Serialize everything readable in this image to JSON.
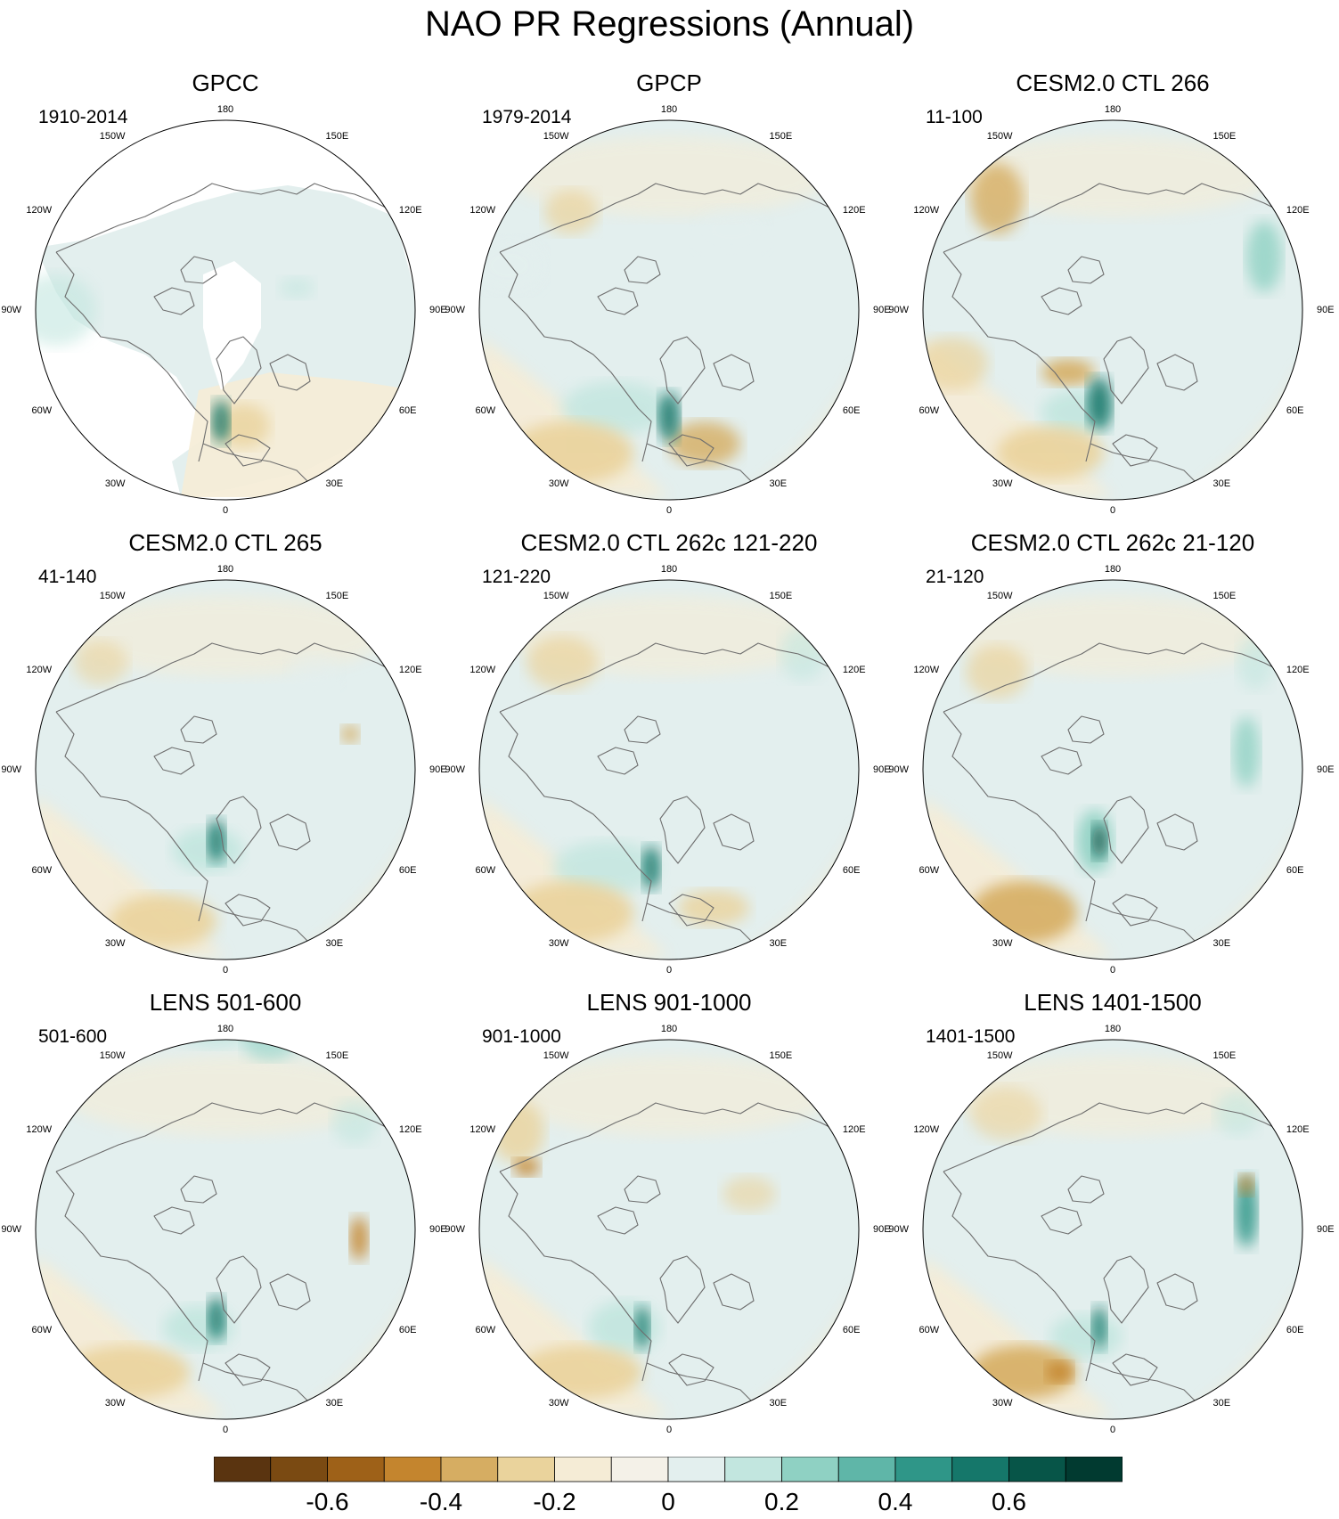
{
  "title": "NAO PR Regressions (Annual)",
  "panels": [
    {
      "title": "GPCC",
      "period": "1910-2014",
      "missing_ocean": true
    },
    {
      "title": "GPCP",
      "period": "1979-2014",
      "missing_ocean": false
    },
    {
      "title": "CESM2.0 CTL 266",
      "period": "11-100",
      "missing_ocean": false
    },
    {
      "title": "CESM2.0 CTL 265",
      "period": "41-140",
      "missing_ocean": false
    },
    {
      "title": "CESM2.0 CTL 262c 121-220",
      "period": "121-220",
      "missing_ocean": false
    },
    {
      "title": "CESM2.0 CTL 262c 21-120",
      "period": "21-120",
      "missing_ocean": false
    },
    {
      "title": "LENS 501-600",
      "period": "501-600",
      "missing_ocean": false
    },
    {
      "title": "LENS 901-1000",
      "period": "901-1000",
      "missing_ocean": false
    },
    {
      "title": "LENS 1401-1500",
      "period": "1401-1500",
      "missing_ocean": false
    }
  ],
  "longitude_labels": {
    "top": "180",
    "top_left": "150W",
    "top_right": "150E",
    "upper_left": "120W",
    "upper_right": "120E",
    "left": "90W",
    "right": "90E",
    "lower_left": "60W",
    "lower_right": "60E",
    "bottom_left": "30W",
    "bottom_right": "30E",
    "bottom": "0"
  },
  "colorbar": {
    "colors": [
      "#5a3410",
      "#7a4a12",
      "#9e6118",
      "#c4852e",
      "#d6ad62",
      "#ead39c",
      "#f5ecd6",
      "#f4f1e8",
      "#e3efee",
      "#c2e6df",
      "#8fd1c3",
      "#5fb6a8",
      "#2f9688",
      "#15776a",
      "#075548",
      "#013a30"
    ],
    "tick_labels": [
      "-0.6",
      "-0.4",
      "-0.2",
      "0",
      "0.2",
      "0.4",
      "0.6"
    ]
  }
}
